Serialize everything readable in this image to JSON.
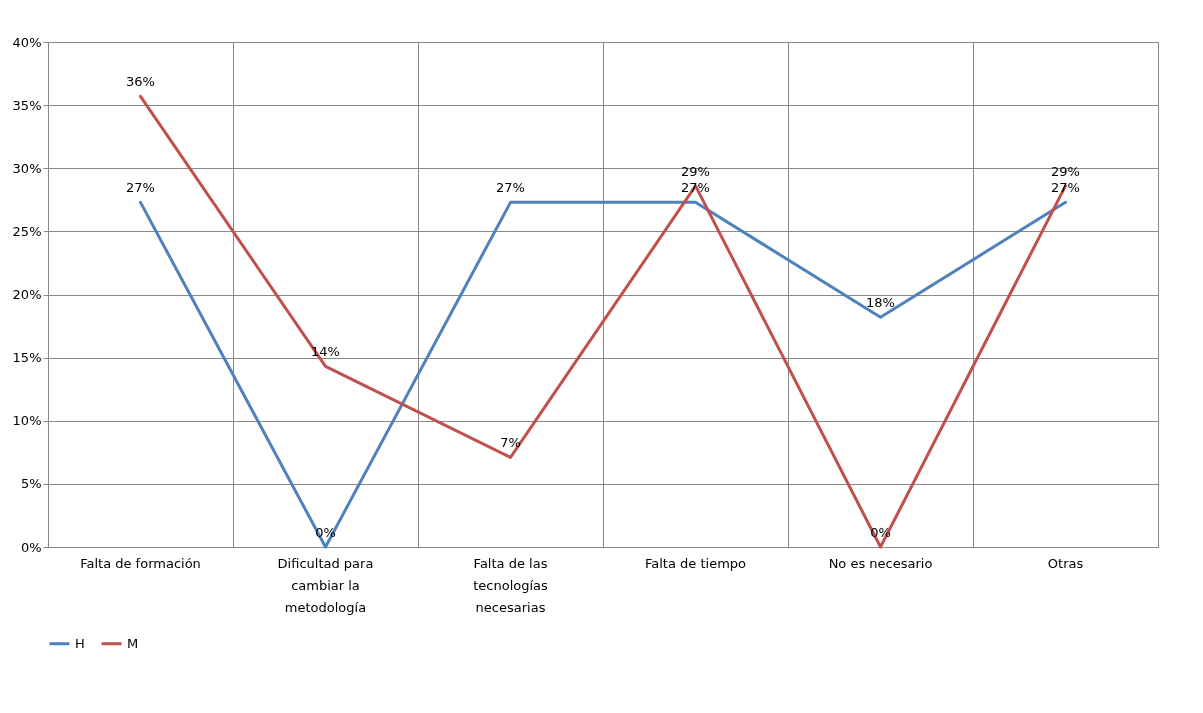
{
  "chart_data": {
    "type": "line",
    "categories": [
      "Falta de formación",
      "Dificultad para cambiar la metodología",
      "Falta de las tecnologías necesarias",
      "Falta de tiempo",
      "No es necesario",
      "Otras"
    ],
    "series": [
      {
        "name": "H",
        "color": "#4f81bd",
        "values": [
          27.3,
          0,
          27.3,
          27.3,
          18.2,
          27.3
        ],
        "value_labels": [
          "27%",
          "0%",
          "27%",
          "27%",
          "18%",
          "27%"
        ]
      },
      {
        "name": "M",
        "color": "#c0504d",
        "values": [
          35.7,
          14.3,
          7.1,
          28.6,
          0,
          28.6
        ],
        "value_labels": [
          "36%",
          "14%",
          "7%",
          "29%",
          "0%",
          "29%"
        ]
      }
    ],
    "ylim": [
      0,
      40
    ],
    "yticks": [
      {
        "value": 0,
        "label": "0%"
      },
      {
        "value": 5,
        "label": "5%"
      },
      {
        "value": 10,
        "label": "10%"
      },
      {
        "value": 15,
        "label": "15%"
      },
      {
        "value": 20,
        "label": "20%"
      },
      {
        "value": 25,
        "label": "25%"
      },
      {
        "value": 30,
        "label": "30%"
      },
      {
        "value": 35,
        "label": "35%"
      },
      {
        "value": 40,
        "label": "40%"
      }
    ],
    "grid": true,
    "legend": "bottom",
    "marker": "none",
    "line_style": "solid"
  }
}
